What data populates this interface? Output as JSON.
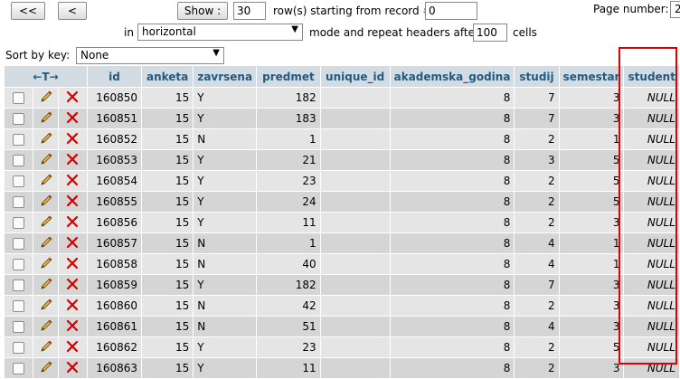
{
  "nav": {
    "first_label": "<<",
    "prev_label": "<"
  },
  "show": {
    "button_label": "Show :",
    "rows_value": "30",
    "rows_text": "row(s) starting from record #",
    "start_value": "0",
    "page_number_label": "Page number:",
    "page_number_value": "2"
  },
  "mode": {
    "prefix": "in",
    "selected": "horizontal",
    "text": "mode and repeat headers after",
    "repeat_value": "100",
    "suffix": "cells"
  },
  "sort": {
    "label": "Sort by key:",
    "selected": "None"
  },
  "table": {
    "action_header_symbol": "←T→",
    "columns": [
      "id",
      "anketa",
      "zavrsena",
      "predmet",
      "unique_id",
      "akademska_godina",
      "studij",
      "semestar",
      "student"
    ],
    "rows": [
      {
        "id": "160850",
        "anketa": "15",
        "zavrsena": "Y",
        "predmet": "182",
        "unique_id": "",
        "akademska_godina": "8",
        "studij": "7",
        "semestar": "3",
        "student": "NULL"
      },
      {
        "id": "160851",
        "anketa": "15",
        "zavrsena": "Y",
        "predmet": "183",
        "unique_id": "",
        "akademska_godina": "8",
        "studij": "7",
        "semestar": "3",
        "student": "NULL"
      },
      {
        "id": "160852",
        "anketa": "15",
        "zavrsena": "N",
        "predmet": "1",
        "unique_id": "",
        "akademska_godina": "8",
        "studij": "2",
        "semestar": "1",
        "student": "NULL"
      },
      {
        "id": "160853",
        "anketa": "15",
        "zavrsena": "Y",
        "predmet": "21",
        "unique_id": "",
        "akademska_godina": "8",
        "studij": "3",
        "semestar": "5",
        "student": "NULL"
      },
      {
        "id": "160854",
        "anketa": "15",
        "zavrsena": "Y",
        "predmet": "23",
        "unique_id": "",
        "akademska_godina": "8",
        "studij": "2",
        "semestar": "5",
        "student": "NULL"
      },
      {
        "id": "160855",
        "anketa": "15",
        "zavrsena": "Y",
        "predmet": "24",
        "unique_id": "",
        "akademska_godina": "8",
        "studij": "2",
        "semestar": "5",
        "student": "NULL"
      },
      {
        "id": "160856",
        "anketa": "15",
        "zavrsena": "Y",
        "predmet": "11",
        "unique_id": "",
        "akademska_godina": "8",
        "studij": "2",
        "semestar": "3",
        "student": "NULL"
      },
      {
        "id": "160857",
        "anketa": "15",
        "zavrsena": "N",
        "predmet": "1",
        "unique_id": "",
        "akademska_godina": "8",
        "studij": "4",
        "semestar": "1",
        "student": "NULL"
      },
      {
        "id": "160858",
        "anketa": "15",
        "zavrsena": "N",
        "predmet": "40",
        "unique_id": "",
        "akademska_godina": "8",
        "studij": "4",
        "semestar": "1",
        "student": "NULL"
      },
      {
        "id": "160859",
        "anketa": "15",
        "zavrsena": "Y",
        "predmet": "182",
        "unique_id": "",
        "akademska_godina": "8",
        "studij": "7",
        "semestar": "3",
        "student": "NULL"
      },
      {
        "id": "160860",
        "anketa": "15",
        "zavrsena": "N",
        "predmet": "42",
        "unique_id": "",
        "akademska_godina": "8",
        "studij": "2",
        "semestar": "3",
        "student": "NULL"
      },
      {
        "id": "160861",
        "anketa": "15",
        "zavrsena": "N",
        "predmet": "51",
        "unique_id": "",
        "akademska_godina": "8",
        "studij": "4",
        "semestar": "3",
        "student": "NULL"
      },
      {
        "id": "160862",
        "anketa": "15",
        "zavrsena": "Y",
        "predmet": "23",
        "unique_id": "",
        "akademska_godina": "8",
        "studij": "2",
        "semestar": "5",
        "student": "NULL"
      },
      {
        "id": "160863",
        "anketa": "15",
        "zavrsena": "Y",
        "predmet": "11",
        "unique_id": "",
        "akademska_godina": "8",
        "studij": "2",
        "semestar": "3",
        "student": "NULL"
      }
    ]
  },
  "colors": {
    "header_bg": "#d3dce3",
    "header_text": "#235a81",
    "row_odd": "#e5e5e5",
    "row_even": "#d5d5d5",
    "highlight": "#e00000"
  },
  "icons": {
    "edit": "pencil-icon",
    "delete": "delete-x-icon",
    "select": "checkbox"
  }
}
